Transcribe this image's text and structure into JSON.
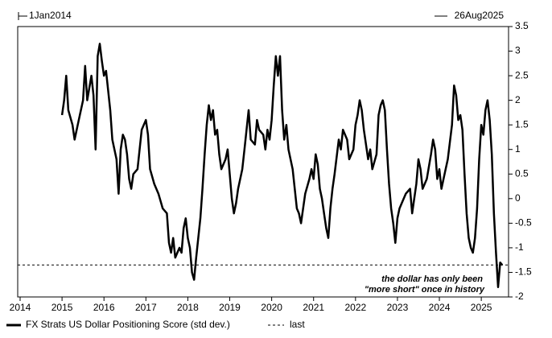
{
  "chart_data": {
    "type": "line",
    "top_left_label": "1Jan2014",
    "top_right_label": "26Aug2025",
    "annotation": [
      "the dollar has only been",
      "\"more short\" once in history"
    ],
    "x": [
      2015.0,
      2015.05,
      2015.1,
      2015.15,
      2015.25,
      2015.3,
      2015.4,
      2015.5,
      2015.55,
      2015.6,
      2015.7,
      2015.75,
      2015.8,
      2015.85,
      2015.9,
      2015.95,
      2016.0,
      2016.05,
      2016.1,
      2016.15,
      2016.2,
      2016.3,
      2016.35,
      2016.4,
      2016.45,
      2016.5,
      2016.55,
      2016.6,
      2016.65,
      2016.7,
      2016.8,
      2016.9,
      2017.0,
      2017.05,
      2017.1,
      2017.2,
      2017.3,
      2017.4,
      2017.5,
      2017.55,
      2017.6,
      2017.65,
      2017.7,
      2017.8,
      2017.85,
      2017.9,
      2017.95,
      2018.0,
      2018.05,
      2018.1,
      2018.15,
      2018.2,
      2018.25,
      2018.3,
      2018.35,
      2018.4,
      2018.45,
      2018.5,
      2018.55,
      2018.6,
      2018.65,
      2018.7,
      2018.75,
      2018.8,
      2018.9,
      2018.95,
      2019.0,
      2019.05,
      2019.1,
      2019.15,
      2019.2,
      2019.3,
      2019.35,
      2019.4,
      2019.45,
      2019.5,
      2019.6,
      2019.65,
      2019.7,
      2019.8,
      2019.85,
      2019.9,
      2019.95,
      2020.0,
      2020.05,
      2020.1,
      2020.15,
      2020.2,
      2020.25,
      2020.3,
      2020.35,
      2020.4,
      2020.5,
      2020.55,
      2020.6,
      2020.65,
      2020.7,
      2020.75,
      2020.8,
      2020.9,
      2020.95,
      2021.0,
      2021.05,
      2021.1,
      2021.15,
      2021.2,
      2021.25,
      2021.3,
      2021.35,
      2021.4,
      2021.45,
      2021.5,
      2021.6,
      2021.65,
      2021.7,
      2021.8,
      2021.85,
      2021.95,
      2022.0,
      2022.05,
      2022.1,
      2022.15,
      2022.2,
      2022.3,
      2022.35,
      2022.4,
      2022.5,
      2022.55,
      2022.6,
      2022.65,
      2022.7,
      2022.75,
      2022.8,
      2022.85,
      2022.9,
      2022.95,
      2023.0,
      2023.05,
      2023.1,
      2023.2,
      2023.3,
      2023.35,
      2023.45,
      2023.5,
      2023.55,
      2023.6,
      2023.7,
      2023.8,
      2023.85,
      2023.9,
      2023.95,
      2024.0,
      2024.05,
      2024.1,
      2024.15,
      2024.2,
      2024.3,
      2024.35,
      2024.4,
      2024.45,
      2024.5,
      2024.55,
      2024.6,
      2024.65,
      2024.7,
      2024.75,
      2024.8,
      2024.85,
      2024.9,
      2024.95,
      2025.0,
      2025.05,
      2025.1,
      2025.15,
      2025.2,
      2025.25,
      2025.3,
      2025.35,
      2025.4,
      2025.45,
      2025.5
    ],
    "series": [
      {
        "name": "FX Strats US Dollar Positioning Score (std dev.)",
        "color": "#000000",
        "values": [
          1.7,
          2.0,
          2.5,
          1.8,
          1.5,
          1.2,
          1.6,
          2.0,
          2.7,
          2.0,
          2.5,
          2.1,
          1.0,
          2.9,
          3.15,
          2.8,
          2.5,
          2.6,
          2.2,
          1.8,
          1.2,
          0.8,
          0.1,
          1.0,
          1.3,
          1.2,
          0.9,
          0.4,
          0.2,
          0.5,
          0.6,
          1.4,
          1.6,
          1.3,
          0.6,
          0.3,
          0.1,
          -0.2,
          -0.3,
          -0.9,
          -1.1,
          -0.8,
          -1.2,
          -1.0,
          -1.1,
          -0.6,
          -0.4,
          -0.8,
          -1.0,
          -1.5,
          -1.65,
          -1.2,
          -0.8,
          -0.4,
          0.2,
          0.9,
          1.5,
          1.9,
          1.6,
          1.8,
          1.3,
          1.4,
          0.9,
          0.6,
          0.8,
          1.0,
          0.5,
          0.0,
          -0.3,
          -0.1,
          0.2,
          0.6,
          1.0,
          1.4,
          1.8,
          1.2,
          1.1,
          1.6,
          1.4,
          1.3,
          1.0,
          1.4,
          1.2,
          1.6,
          2.3,
          2.9,
          2.5,
          2.9,
          1.8,
          1.2,
          1.5,
          1.0,
          0.6,
          0.2,
          -0.2,
          -0.3,
          -0.5,
          -0.2,
          0.1,
          0.4,
          0.6,
          0.4,
          0.9,
          0.7,
          0.2,
          0.0,
          -0.3,
          -0.6,
          -0.8,
          -0.2,
          0.2,
          0.5,
          1.2,
          1.0,
          1.4,
          1.2,
          0.8,
          1.0,
          1.5,
          1.7,
          2.0,
          1.8,
          1.4,
          0.8,
          1.0,
          0.6,
          0.9,
          1.7,
          1.9,
          2.0,
          1.8,
          1.0,
          0.3,
          -0.2,
          -0.5,
          -0.9,
          -0.4,
          -0.2,
          -0.1,
          0.1,
          0.2,
          -0.3,
          0.3,
          0.8,
          0.6,
          0.2,
          0.4,
          0.9,
          1.2,
          1.0,
          0.4,
          0.6,
          0.2,
          0.4,
          0.6,
          0.8,
          1.5,
          2.3,
          2.1,
          1.6,
          1.7,
          1.4,
          0.5,
          -0.3,
          -0.8,
          -1.0,
          -1.1,
          -0.8,
          -0.2,
          0.8,
          1.5,
          1.3,
          1.8,
          2.0,
          1.6,
          0.9,
          -0.3,
          -1.1,
          -1.8,
          -1.3,
          -1.35
        ]
      }
    ],
    "reference_line": {
      "name": "last",
      "value": -1.35
    },
    "xlim": [
      2014,
      2025.65
    ],
    "xticks": [
      2014,
      2015,
      2016,
      2017,
      2018,
      2019,
      2020,
      2021,
      2022,
      2023,
      2024,
      2025
    ],
    "ylim": [
      -2,
      3.5
    ],
    "yticks": [
      3.5,
      3,
      2.5,
      2,
      1.5,
      1,
      0.5,
      0,
      -0.5,
      -1,
      -1.5,
      -2
    ],
    "y_axis_side": "right"
  }
}
